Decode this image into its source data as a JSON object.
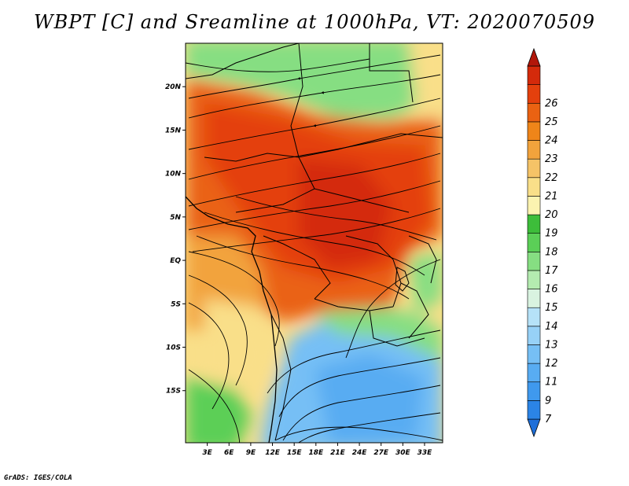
{
  "title": "WBPT [C] and Sreamline at 1000hPa, VT: 2020070509",
  "footer": "GrADS: IGES/COLA",
  "map": {
    "lon_range": [
      0,
      35.5
    ],
    "lat_range": [
      -21,
      25
    ],
    "lon_labels": [
      "3E",
      "6E",
      "9E",
      "12E",
      "15E",
      "18E",
      "21E",
      "24E",
      "27E",
      "30E",
      "33E"
    ],
    "lat_labels": [
      "20N",
      "15N",
      "10N",
      "5N",
      "EQ",
      "5S",
      "10S",
      "15S"
    ]
  },
  "colorbar": {
    "labels": [
      "7",
      "9",
      "11",
      "12",
      "13",
      "14",
      "15",
      "16",
      "17",
      "18",
      "19",
      "20",
      "21",
      "22",
      "23",
      "24",
      "25",
      "26"
    ],
    "colors": [
      "#1e6fd9",
      "#2b84e6",
      "#3f99ee",
      "#58acf2",
      "#76bff5",
      "#97d1f7",
      "#b6e2f8",
      "#d9f3e0",
      "#b4ebb0",
      "#86de82",
      "#5bcf57",
      "#3dbd3a",
      "#fbf3b0",
      "#f9df89",
      "#f5c367",
      "#f2a33c",
      "#ef8519",
      "#ea6212",
      "#e4400d",
      "#d42a0b",
      "#b2170a"
    ]
  }
}
